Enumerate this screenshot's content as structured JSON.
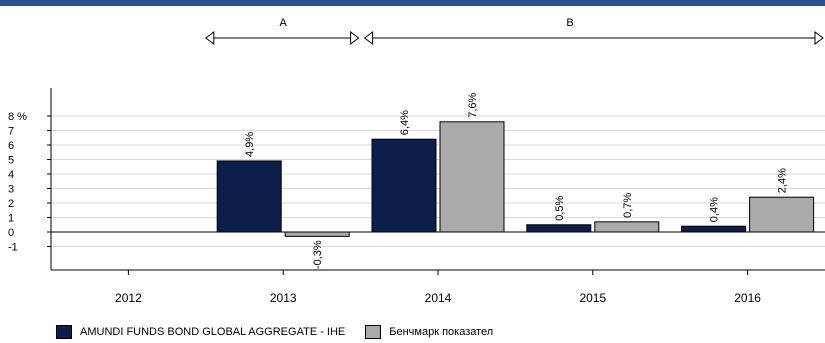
{
  "chart_data": {
    "type": "bar",
    "categories": [
      "2012",
      "2013",
      "2014",
      "2015",
      "2016"
    ],
    "series": [
      {
        "name": "AMUNDI FUNDS BOND GLOBAL AGGREGATE - IHE",
        "color": "#0c1f4a",
        "values": [
          null,
          4.9,
          6.4,
          0.5,
          0.4
        ],
        "labels": [
          "",
          "4,9%",
          "6,4%",
          "0,5%",
          "0,4%"
        ]
      },
      {
        "name": "Бенчмарк показател",
        "color": "#aaaaaa",
        "values": [
          null,
          -0.3,
          7.6,
          0.7,
          2.4
        ],
        "labels": [
          "",
          "-0,3%",
          "7,6%",
          "0,7%",
          "2,4%"
        ]
      }
    ],
    "yticks": [
      {
        "value": 8,
        "label": "8 %"
      },
      {
        "value": 7,
        "label": "7"
      },
      {
        "value": 6,
        "label": "6"
      },
      {
        "value": 5,
        "label": "5"
      },
      {
        "value": 4,
        "label": "4"
      },
      {
        "value": 3,
        "label": "3"
      },
      {
        "value": 2,
        "label": "2"
      },
      {
        "value": 1,
        "label": "1"
      },
      {
        "value": 0,
        "label": "0"
      },
      {
        "value": -1,
        "label": "-1"
      }
    ],
    "ylim": [
      -1,
      8
    ],
    "grid": true,
    "legend_position": "bottom-left",
    "periods": [
      {
        "label": "A",
        "start": "2012/2013",
        "end": "2013/2014"
      },
      {
        "label": "B",
        "start": "2013/2014",
        "end": "after 2016"
      }
    ]
  }
}
